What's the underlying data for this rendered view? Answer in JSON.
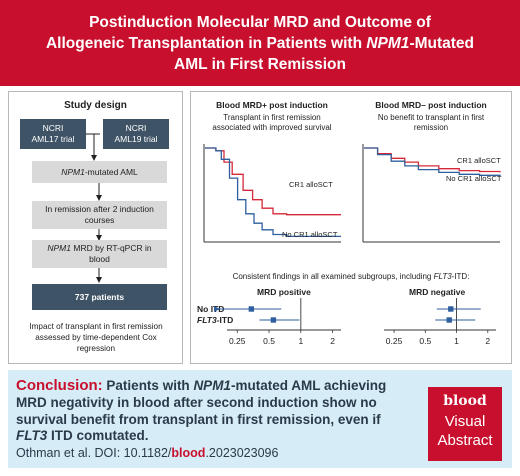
{
  "banner": {
    "title_line1": "Postinduction Molecular MRD and Outcome of",
    "title_line2_a": "Allogeneic Transplantation in Patients with ",
    "title_line2_i": "NPM1",
    "title_line2_b": "-Mutated",
    "title_line3": "AML in First Remission",
    "color": "#c8102e"
  },
  "study_design": {
    "title": "Study design",
    "trial1_a": "NCRI",
    "trial1_b": "AML17 trial",
    "trial2_a": "NCRI",
    "trial2_b": "AML19 trial",
    "step1_i": "NPM1",
    "step1_b": "-mutated AML",
    "step2": "In remission after 2 induction courses",
    "step3_i": "NPM1",
    "step3_b": " MRD by RT-qPCR in blood",
    "step4": "737 patients",
    "impact": "Impact of transplant in first remission assessed by time-dependent Cox regression"
  },
  "survival": {
    "pos_title": "Blood MRD+ post induction",
    "pos_sub1": "Transplant in first remission",
    "pos_sub2": "associated with improved survival",
    "neg_title": "Blood MRD– post induction",
    "neg_sub1": "No benefit to transplant in first",
    "neg_sub2": "remission",
    "cr1_label": "CR1 alloSCT",
    "nocr1_label": "No CR1 alloSCT",
    "cr1_color": "#d62839",
    "nocr1_color": "#2f5f9e"
  },
  "forest": {
    "consistent_a": "Consistent findings in all examined subgroups, including ",
    "consistent_i": "FLT3",
    "consistent_b": "-ITD:",
    "pos_label": "MRD positive",
    "neg_label": "MRD negative",
    "row1": "No ITD",
    "row2_i": "FLT3",
    "row2_b": "-ITD",
    "ticks": [
      "0.25",
      "0.5",
      "1",
      "2"
    ]
  },
  "chart_data": [
    {
      "type": "line",
      "title": "Blood MRD+ post induction",
      "xlabel": "",
      "ylabel": "",
      "ylim": [
        0,
        1
      ],
      "series": [
        {
          "name": "CR1 alloSCT",
          "x": [
            0,
            0.08,
            0.14,
            0.2,
            0.28,
            0.35,
            0.42,
            0.5,
            0.6,
            0.75,
            1.0
          ],
          "y": [
            1.0,
            0.97,
            0.85,
            0.72,
            0.55,
            0.45,
            0.36,
            0.3,
            0.29,
            0.29,
            0.29
          ]
        },
        {
          "name": "No CR1 alloSCT",
          "x": [
            0,
            0.08,
            0.12,
            0.18,
            0.24,
            0.3,
            0.36,
            0.42,
            0.5,
            0.6,
            0.75,
            1.0
          ],
          "y": [
            1.0,
            0.97,
            0.88,
            0.68,
            0.45,
            0.3,
            0.2,
            0.13,
            0.08,
            0.06,
            0.06,
            0.06
          ]
        }
      ]
    },
    {
      "type": "line",
      "title": "Blood MRD– post induction",
      "xlabel": "",
      "ylabel": "",
      "ylim": [
        0,
        1
      ],
      "series": [
        {
          "name": "CR1 alloSCT",
          "x": [
            0,
            0.1,
            0.2,
            0.3,
            0.4,
            0.55,
            0.7,
            0.85,
            1.0
          ],
          "y": [
            1.0,
            0.94,
            0.89,
            0.85,
            0.81,
            0.78,
            0.76,
            0.75,
            0.74
          ]
        },
        {
          "name": "No CR1 alloSCT",
          "x": [
            0,
            0.1,
            0.2,
            0.3,
            0.4,
            0.55,
            0.7,
            0.85,
            1.0
          ],
          "y": [
            1.0,
            0.93,
            0.86,
            0.81,
            0.77,
            0.74,
            0.72,
            0.71,
            0.7
          ]
        }
      ]
    },
    {
      "type": "scatter",
      "title": "MRD positive",
      "xlabel": "",
      "ylabel": "",
      "xscale": "log",
      "xlim": [
        0.2,
        2.4
      ],
      "ticks": [
        0.25,
        0.5,
        1,
        2
      ],
      "categories": [
        "No ITD",
        "FLT3-ITD"
      ],
      "values": [
        0.34,
        0.55
      ]
    },
    {
      "type": "scatter",
      "title": "MRD negative",
      "xlabel": "",
      "ylabel": "",
      "xscale": "log",
      "xlim": [
        0.2,
        2.4
      ],
      "ticks": [
        0.25,
        0.5,
        1,
        2
      ],
      "categories": [
        "No ITD",
        "FLT3-ITD"
      ],
      "values": [
        0.88,
        0.85
      ]
    }
  ],
  "conclusion": {
    "label": "Conclusion:",
    "t1": " Patients with ",
    "t2_i": "NPM1",
    "t3": "-mutated AML achieving MRD negativity in blood after second induction show no survival benefit from transplant in first remission, even if ",
    "t4_i": "FLT3",
    "t5": " ITD comutated.",
    "cite_a": "Othman et al. DOI: 10.1182/",
    "cite_b": "blood",
    "cite_c": ".2023023096",
    "badge_1": "blood",
    "badge_2": "Visual",
    "badge_3": "Abstract"
  }
}
